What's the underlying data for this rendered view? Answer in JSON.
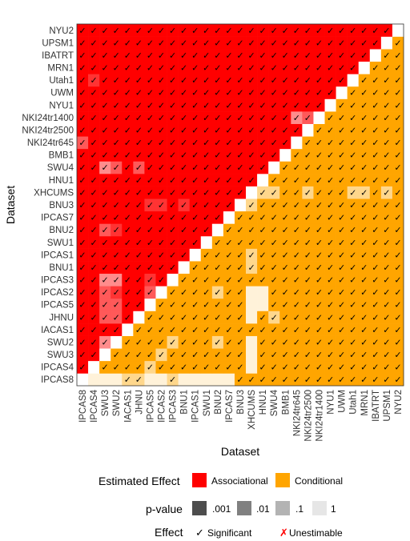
{
  "chart_data": {
    "type": "heatmap",
    "xlabel": "Dataset",
    "ylabel": "Dataset",
    "datasets": [
      "IPCAS8",
      "IPCAS4",
      "SWU3",
      "SWU2",
      "IACAS1",
      "JHNU",
      "IPCAS5",
      "IPCAS2",
      "IPCAS3",
      "BNU1",
      "IPCAS1",
      "SWU1",
      "BNU2",
      "IPCAS7",
      "BNU3",
      "XHCUMS",
      "HNU1",
      "SWU4",
      "BMB1",
      "NKI24tr645",
      "NKI24tr2500",
      "NKI24tr1400",
      "NYU1",
      "UWM",
      "Utah1",
      "MRN1",
      "IBATRT",
      "UPSM1",
      "NYU2"
    ],
    "upper_triangle_effect": "Conditional",
    "lower_triangle_effect": "Associational",
    "faded_cells": [
      {
        "row": "NKI24tr645",
        "col": "IPCAS8",
        "p": ".01"
      },
      {
        "row": "Utah1",
        "col": "IPCAS4",
        "p": ".001"
      },
      {
        "row": "NKI24tr1400",
        "col": "NKI24tr645",
        "p": ".1"
      },
      {
        "row": "NKI24tr1400",
        "col": "NKI24tr2500",
        "p": ".01"
      },
      {
        "row": "SWU4",
        "col": "SWU3",
        "p": ".1"
      },
      {
        "row": "SWU4",
        "col": "SWU2",
        "p": ".01"
      },
      {
        "row": "SWU4",
        "col": "JHNU",
        "p": ".01"
      },
      {
        "row": "BNU3",
        "col": "IPCAS5",
        "p": ".001"
      },
      {
        "row": "BNU3",
        "col": "IPCAS2",
        "p": ".001"
      },
      {
        "row": "BNU3",
        "col": "BNU1",
        "p": ".001"
      },
      {
        "row": "BNU2",
        "col": "SWU3",
        "p": ".01"
      },
      {
        "row": "BNU2",
        "col": "SWU2",
        "p": ".001"
      },
      {
        "row": "IPCAS3",
        "col": "SWU3",
        "p": ".1"
      },
      {
        "row": "IPCAS3",
        "col": "SWU2",
        "p": ".1"
      },
      {
        "row": "IPCAS3",
        "col": "IPCAS5",
        "p": ".001"
      },
      {
        "row": "IPCAS2",
        "col": "SWU3",
        "p": ".01"
      },
      {
        "row": "IPCAS2",
        "col": "SWU2",
        "p": ".001"
      },
      {
        "row": "IPCAS2",
        "col": "IPCAS5",
        "p": ".01"
      },
      {
        "row": "IPCAS5",
        "col": "SWU3",
        "p": ".01"
      },
      {
        "row": "IPCAS5",
        "col": "SWU2",
        "p": ".01"
      },
      {
        "row": "JHNU",
        "col": "SWU3",
        "p": ".01"
      },
      {
        "row": "JHNU",
        "col": "SWU2",
        "p": ".01"
      },
      {
        "row": "SWU2",
        "col": "SWU3",
        "p": ".1"
      },
      {
        "row": "XHCUMS",
        "col": "HNU1",
        "p": ".1"
      },
      {
        "row": "XHCUMS",
        "col": "SWU4",
        "p": ".1"
      },
      {
        "row": "XHCUMS",
        "col": "NKI24tr2500",
        "p": ".1"
      },
      {
        "row": "XHCUMS",
        "col": "Utah1",
        "p": ".1"
      },
      {
        "row": "XHCUMS",
        "col": "MRN1",
        "p": ".1"
      },
      {
        "row": "XHCUMS",
        "col": "UPSM1",
        "p": ".1"
      },
      {
        "row": "BNU3",
        "col": "XHCUMS",
        "p": ".1"
      },
      {
        "row": "IPCAS1",
        "col": "XHCUMS",
        "p": ".1"
      },
      {
        "row": "BNU1",
        "col": "XHCUMS",
        "p": ".1"
      },
      {
        "row": "IPCAS2",
        "col": "XHCUMS",
        "p": "1"
      },
      {
        "row": "IPCAS2",
        "col": "HNU1",
        "p": "1"
      },
      {
        "row": "IPCAS2",
        "col": "BNU2",
        "p": ".1"
      },
      {
        "row": "IPCAS5",
        "col": "XHCUMS",
        "p": "1"
      },
      {
        "row": "IPCAS5",
        "col": "HNU1",
        "p": "1"
      },
      {
        "row": "JHNU",
        "col": "XHCUMS",
        "p": "1"
      },
      {
        "row": "JHNU",
        "col": "SWU4",
        "p": ".1"
      },
      {
        "row": "SWU2",
        "col": "XHCUMS",
        "p": "1"
      },
      {
        "row": "SWU2",
        "col": "BNU2",
        "p": ".1"
      },
      {
        "row": "SWU2",
        "col": "IPCAS3",
        "p": ".1"
      },
      {
        "row": "SWU3",
        "col": "XHCUMS",
        "p": "1"
      },
      {
        "row": "SWU3",
        "col": "IPCAS2",
        "p": ".1"
      },
      {
        "row": "IPCAS4",
        "col": "XHCUMS",
        "p": "1"
      },
      {
        "row": "IPCAS4",
        "col": "IPCAS5",
        "p": ".1"
      },
      {
        "row": "IPCAS8",
        "col": "IPCAS5",
        "p": "1"
      },
      {
        "row": "IPCAS8",
        "col": "IPCAS4",
        "p": "1"
      },
      {
        "row": "IPCAS8",
        "col": "SWU3",
        "p": "1"
      },
      {
        "row": "IPCAS8",
        "col": "SWU2",
        "p": "1"
      },
      {
        "row": "IPCAS8",
        "col": "IACAS1",
        "p": ".1"
      },
      {
        "row": "IPCAS8",
        "col": "JHNU",
        "p": ".1"
      },
      {
        "row": "IPCAS8",
        "col": "IPCAS2",
        "p": "1"
      },
      {
        "row": "IPCAS8",
        "col": "IPCAS3",
        "p": ".1"
      },
      {
        "row": "IPCAS8",
        "col": "BNU1",
        "p": "1"
      },
      {
        "row": "IPCAS8",
        "col": "IPCAS1",
        "p": "1"
      },
      {
        "row": "IPCAS8",
        "col": "SWU1",
        "p": "1"
      },
      {
        "row": "IPCAS8",
        "col": "BNU2",
        "p": "1"
      },
      {
        "row": "IPCAS8",
        "col": "IPCAS7",
        "p": "1"
      }
    ],
    "blank_cells": [
      {
        "row": "IPCAS8",
        "col": "IPCAS8"
      },
      {
        "row": "SWU3",
        "col": "SWU2"
      },
      {
        "row": "IPCAS5",
        "col": "IACAS1"
      },
      {
        "row": "SWU3",
        "col": "IACAS1"
      },
      {
        "row": "IPCAS8",
        "col": "IPCAS8"
      }
    ]
  },
  "legend": {
    "effect_title": "Estimated Effect",
    "effect_items": [
      {
        "label": "Associational",
        "color": "#ff0000"
      },
      {
        "label": "Conditional",
        "color": "#ffa500"
      }
    ],
    "pvalue_title": "p-value",
    "pvalue_items": [
      {
        "label": ".001",
        "color": "#4d4d4d"
      },
      {
        "label": ".01",
        "color": "#808080"
      },
      {
        "label": ".1",
        "color": "#b3b3b3"
      },
      {
        "label": "1",
        "color": "#e6e6e6"
      }
    ],
    "mark_title": "Effect",
    "mark_items": [
      {
        "symbol": "✓",
        "label": "Significant",
        "color": "#000000"
      },
      {
        "symbol": "✗",
        "label": "Unestimable",
        "color": "#ff0000"
      }
    ]
  },
  "colors": {
    "associational": "#ff0000",
    "conditional": "#ffa500",
    "diagonal": "#ffffff"
  }
}
